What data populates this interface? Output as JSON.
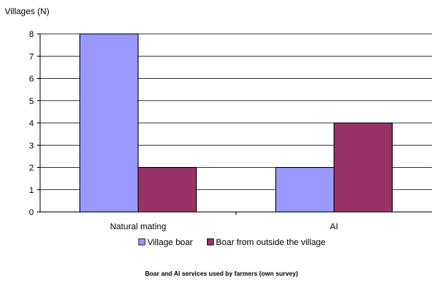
{
  "chart_data": {
    "type": "bar",
    "categories": [
      "Natural mating",
      "AI"
    ],
    "series": [
      {
        "name": "Village boar",
        "values": [
          8,
          2
        ],
        "color": "#9999ff"
      },
      {
        "name": "Boar from outside the village",
        "values": [
          2,
          4
        ],
        "color": "#993366"
      }
    ],
    "ylabel": "Villages (N)",
    "ylim": [
      0,
      8
    ],
    "yticks": [
      "0",
      "1",
      "2",
      "3",
      "4",
      "5",
      "6",
      "7",
      "8"
    ],
    "grid": true,
    "legend_position": "bottom"
  },
  "caption": "Boar and AI services used by farmers (own survey)"
}
